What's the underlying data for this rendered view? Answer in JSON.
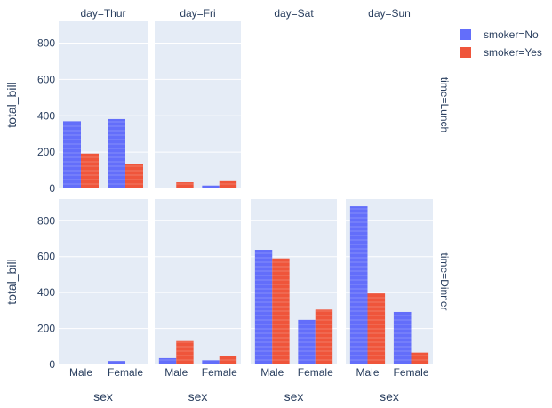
{
  "chart_data": {
    "type": "bar",
    "barmode": "stacked-stripes-grouped-by-smoker",
    "x_categories": [
      "Male",
      "Female"
    ],
    "columns": [
      "day=Thur",
      "day=Fri",
      "day=Sat",
      "day=Sun"
    ],
    "rows": [
      "time=Lunch",
      "time=Dinner"
    ],
    "xlabel": "sex",
    "ylabel": "total_bill",
    "ylim": [
      0,
      920
    ],
    "y_ticks": [
      0,
      200,
      400,
      600,
      800
    ],
    "y_tick_labels": [
      "0",
      "200",
      "400",
      "600",
      "800"
    ],
    "legend_position": "top-right",
    "series": [
      {
        "name": "smoker=No",
        "color": "#636efa"
      },
      {
        "name": "smoker=Yes",
        "color": "#EF553B"
      }
    ],
    "facets": [
      {
        "row": 0,
        "col": 0,
        "bars": [
          {
            "sex": "Male",
            "smoker": "No",
            "value": 370
          },
          {
            "sex": "Male",
            "smoker": "Yes",
            "value": 192
          },
          {
            "sex": "Female",
            "smoker": "No",
            "value": 382
          },
          {
            "sex": "Female",
            "smoker": "Yes",
            "value": 135
          }
        ]
      },
      {
        "row": 0,
        "col": 1,
        "bars": [
          {
            "sex": "Male",
            "smoker": "No",
            "value": 0
          },
          {
            "sex": "Male",
            "smoker": "Yes",
            "value": 34
          },
          {
            "sex": "Female",
            "smoker": "No",
            "value": 16
          },
          {
            "sex": "Female",
            "smoker": "Yes",
            "value": 40
          }
        ]
      },
      {
        "row": 0,
        "col": 2,
        "bars": []
      },
      {
        "row": 0,
        "col": 3,
        "bars": []
      },
      {
        "row": 1,
        "col": 0,
        "bars": [
          {
            "sex": "Male",
            "smoker": "No",
            "value": 0
          },
          {
            "sex": "Male",
            "smoker": "Yes",
            "value": 0
          },
          {
            "sex": "Female",
            "smoker": "No",
            "value": 19
          },
          {
            "sex": "Female",
            "smoker": "Yes",
            "value": 0
          }
        ]
      },
      {
        "row": 1,
        "col": 1,
        "bars": [
          {
            "sex": "Male",
            "smoker": "No",
            "value": 35
          },
          {
            "sex": "Male",
            "smoker": "Yes",
            "value": 130
          },
          {
            "sex": "Female",
            "smoker": "No",
            "value": 23
          },
          {
            "sex": "Female",
            "smoker": "Yes",
            "value": 48
          }
        ]
      },
      {
        "row": 1,
        "col": 2,
        "bars": [
          {
            "sex": "Male",
            "smoker": "No",
            "value": 638
          },
          {
            "sex": "Male",
            "smoker": "Yes",
            "value": 590
          },
          {
            "sex": "Female",
            "smoker": "No",
            "value": 248
          },
          {
            "sex": "Female",
            "smoker": "Yes",
            "value": 305
          }
        ]
      },
      {
        "row": 1,
        "col": 3,
        "bars": [
          {
            "sex": "Male",
            "smoker": "No",
            "value": 880
          },
          {
            "sex": "Male",
            "smoker": "Yes",
            "value": 395
          },
          {
            "sex": "Female",
            "smoker": "No",
            "value": 292
          },
          {
            "sex": "Female",
            "smoker": "Yes",
            "value": 66
          }
        ]
      }
    ]
  }
}
